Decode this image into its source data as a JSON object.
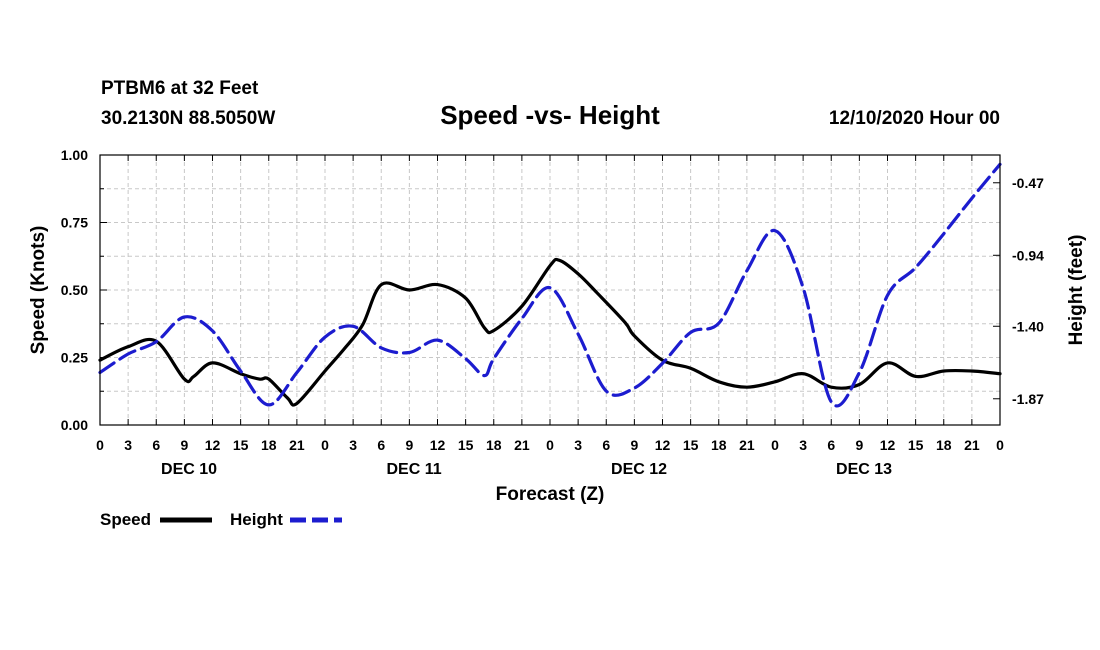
{
  "header": {
    "station": "PTBM6 at 32 Feet",
    "coords": "30.2130N 88.5050W",
    "title": "Speed -vs- Height",
    "run": "12/10/2020 Hour 00"
  },
  "legend": {
    "speed": "Speed",
    "height": "Height"
  },
  "chart_data": {
    "type": "line",
    "title": "Speed -vs- Height",
    "xlabel": "Forecast (Z)",
    "ylabel_left": "Speed (Knots)",
    "ylabel_right": "Height (feet)",
    "x_range_hours": [
      0,
      96
    ],
    "x_tick_labels": [
      "0",
      "3",
      "6",
      "9",
      "12",
      "15",
      "18",
      "21",
      "0",
      "3",
      "6",
      "9",
      "12",
      "15",
      "18",
      "21",
      "0",
      "3",
      "6",
      "9",
      "12",
      "15",
      "18",
      "21",
      "0",
      "3",
      "6",
      "9",
      "12",
      "15",
      "18",
      "21",
      "0"
    ],
    "day_labels": [
      {
        "label": "DEC 10",
        "hour": 9.5
      },
      {
        "label": "DEC 11",
        "hour": 33.5
      },
      {
        "label": "DEC 12",
        "hour": 57.5
      },
      {
        "label": "DEC 13",
        "hour": 81.5
      }
    ],
    "left_axis": {
      "min": 0,
      "max": 1.0,
      "ticks": [
        "0.00",
        "0.25",
        "0.50",
        "0.75",
        "1.00"
      ]
    },
    "right_axis": {
      "min": -2.04,
      "max": -0.29,
      "ticks": [
        "-0.47",
        "-0.94",
        "-1.40",
        "-1.87"
      ]
    },
    "grid": true,
    "legend_position": "bottom-left",
    "series": [
      {
        "name": "Speed",
        "axis": "left",
        "color": "#000000",
        "style": "solid",
        "x": [
          0,
          3,
          6,
          9,
          10,
          12,
          15,
          17,
          18,
          20,
          21,
          24,
          26,
          28,
          30,
          33,
          36,
          39,
          41,
          42,
          45,
          48,
          49,
          51,
          53,
          56,
          57,
          60,
          63,
          66,
          69,
          72,
          75,
          78,
          81,
          84,
          87,
          90,
          93,
          96
        ],
        "y": [
          0.24,
          0.29,
          0.31,
          0.17,
          0.18,
          0.23,
          0.19,
          0.17,
          0.17,
          0.1,
          0.08,
          0.2,
          0.28,
          0.37,
          0.52,
          0.5,
          0.52,
          0.47,
          0.36,
          0.35,
          0.44,
          0.59,
          0.61,
          0.56,
          0.49,
          0.38,
          0.33,
          0.24,
          0.21,
          0.16,
          0.14,
          0.16,
          0.19,
          0.14,
          0.15,
          0.23,
          0.18,
          0.2,
          0.2,
          0.19
        ]
      },
      {
        "name": "Height",
        "axis": "right",
        "color": "#1c1ccf",
        "style": "dashed",
        "x": [
          0,
          3,
          6,
          9,
          12,
          15,
          18,
          21,
          24,
          27,
          30,
          33,
          36,
          39,
          41,
          42,
          45,
          48,
          51,
          54,
          57,
          60,
          63,
          66,
          69,
          72,
          75,
          78,
          81,
          84,
          87,
          90,
          93,
          96
        ],
        "y": [
          -1.7,
          -1.58,
          -1.5,
          -1.34,
          -1.43,
          -1.69,
          -1.91,
          -1.7,
          -1.47,
          -1.4,
          -1.54,
          -1.57,
          -1.49,
          -1.61,
          -1.72,
          -1.61,
          -1.35,
          -1.15,
          -1.45,
          -1.82,
          -1.8,
          -1.64,
          -1.44,
          -1.38,
          -1.04,
          -0.78,
          -1.15,
          -1.89,
          -1.7,
          -1.2,
          -1.02,
          -0.8,
          -0.57,
          -0.35
        ]
      }
    ]
  }
}
